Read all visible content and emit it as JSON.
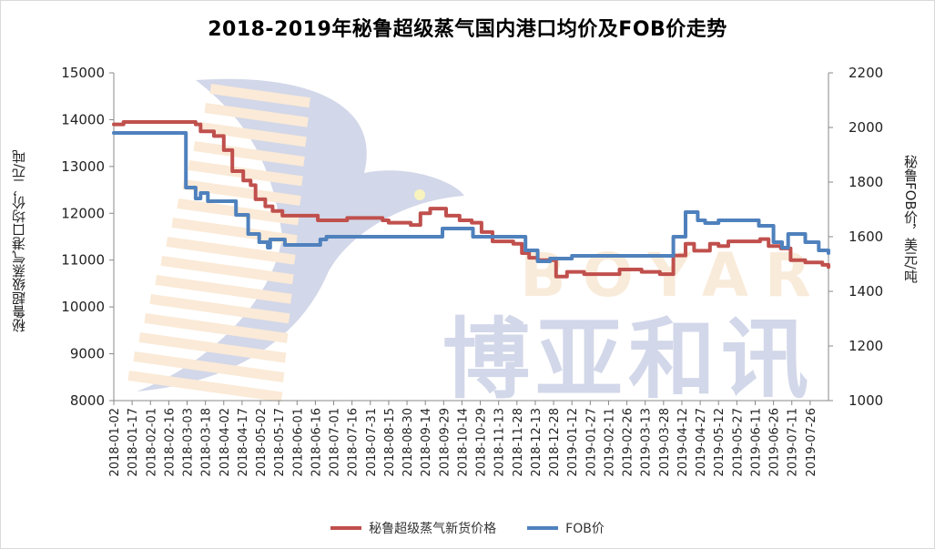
{
  "chart_data": {
    "type": "line",
    "title": "2018-2019年秘鲁超级蒸气国内港口均价及FOB价走势",
    "ylabel_left": "秘鲁超级蒸气港口均价，元/吨",
    "ylabel_right": "秘鲁FOB价，美元/吨",
    "ylim_left": [
      8000,
      15000
    ],
    "ylim_right": [
      1000,
      2200
    ],
    "yticks_left": [
      8000,
      9000,
      10000,
      11000,
      12000,
      13000,
      14000,
      15000
    ],
    "yticks_right": [
      1000,
      1200,
      1400,
      1600,
      1800,
      2000,
      2200
    ],
    "x_ticks": [
      "2018-01-02",
      "2018-01-17",
      "2018-02-01",
      "2018-02-16",
      "2018-03-03",
      "2018-03-18",
      "2018-04-02",
      "2018-04-17",
      "2018-05-02",
      "2018-05-17",
      "2018-06-01",
      "2018-06-16",
      "2018-07-01",
      "2018-07-16",
      "2018-07-31",
      "2018-08-15",
      "2018-08-30",
      "2018-09-14",
      "2018-09-29",
      "2018-10-14",
      "2018-10-29",
      "2018-11-13",
      "2018-11-28",
      "2018-12-13",
      "2018-12-28",
      "2019-01-12",
      "2019-01-27",
      "2019-02-11",
      "2019-02-26",
      "2019-03-13",
      "2019-03-28",
      "2019-04-12",
      "2019-04-27",
      "2019-05-12",
      "2019-05-27",
      "2019-06-11",
      "2019-06-26",
      "2019-07-11",
      "2019-07-26"
    ],
    "x_start": "2018-01-02",
    "x_end": "2019-08-10",
    "series": [
      {
        "name": "秘鲁超级蒸气新货价格",
        "axis": "left",
        "color": "#c0504d",
        "points": [
          [
            "2018-01-02",
            13900
          ],
          [
            "2018-01-10",
            13950
          ],
          [
            "2018-02-20",
            13950
          ],
          [
            "2018-03-10",
            13900
          ],
          [
            "2018-03-14",
            13750
          ],
          [
            "2018-03-25",
            13650
          ],
          [
            "2018-04-02",
            13350
          ],
          [
            "2018-04-09",
            12900
          ],
          [
            "2018-04-18",
            12700
          ],
          [
            "2018-04-24",
            12600
          ],
          [
            "2018-04-28",
            12300
          ],
          [
            "2018-05-06",
            12150
          ],
          [
            "2018-05-12",
            12050
          ],
          [
            "2018-05-20",
            11950
          ],
          [
            "2018-06-15",
            11950
          ],
          [
            "2018-06-18",
            11850
          ],
          [
            "2018-07-10",
            11850
          ],
          [
            "2018-07-12",
            11900
          ],
          [
            "2018-08-10",
            11850
          ],
          [
            "2018-08-15",
            11800
          ],
          [
            "2018-09-02",
            11750
          ],
          [
            "2018-09-10",
            12000
          ],
          [
            "2018-09-18",
            12100
          ],
          [
            "2018-10-01",
            11950
          ],
          [
            "2018-10-12",
            11850
          ],
          [
            "2018-10-22",
            11800
          ],
          [
            "2018-10-30",
            11600
          ],
          [
            "2018-11-08",
            11400
          ],
          [
            "2018-11-25",
            11350
          ],
          [
            "2018-12-02",
            11150
          ],
          [
            "2018-12-08",
            11050
          ],
          [
            "2018-12-15",
            11000
          ],
          [
            "2018-12-26",
            11000
          ],
          [
            "2018-12-30",
            10650
          ],
          [
            "2019-01-08",
            10750
          ],
          [
            "2019-01-22",
            10700
          ],
          [
            "2019-02-15",
            10700
          ],
          [
            "2019-02-20",
            10800
          ],
          [
            "2019-03-10",
            10750
          ],
          [
            "2019-03-25",
            10700
          ],
          [
            "2019-04-05",
            11100
          ],
          [
            "2019-04-15",
            11350
          ],
          [
            "2019-04-22",
            11200
          ],
          [
            "2019-05-05",
            11350
          ],
          [
            "2019-05-12",
            11300
          ],
          [
            "2019-05-20",
            11400
          ],
          [
            "2019-06-15",
            11450
          ],
          [
            "2019-06-22",
            11300
          ],
          [
            "2019-07-02",
            11250
          ],
          [
            "2019-07-10",
            11000
          ],
          [
            "2019-07-22",
            10950
          ],
          [
            "2019-08-05",
            10900
          ],
          [
            "2019-08-10",
            10850
          ]
        ]
      },
      {
        "name": "FOB价",
        "axis": "right",
        "color": "#4f81bd",
        "points": [
          [
            "2018-01-02",
            1980
          ],
          [
            "2018-02-28",
            1980
          ],
          [
            "2018-03-02",
            1780
          ],
          [
            "2018-03-10",
            1740
          ],
          [
            "2018-03-14",
            1760
          ],
          [
            "2018-03-20",
            1730
          ],
          [
            "2018-04-08",
            1730
          ],
          [
            "2018-04-12",
            1680
          ],
          [
            "2018-04-22",
            1610
          ],
          [
            "2018-05-01",
            1580
          ],
          [
            "2018-05-08",
            1560
          ],
          [
            "2018-05-10",
            1590
          ],
          [
            "2018-05-18",
            1590
          ],
          [
            "2018-05-22",
            1570
          ],
          [
            "2018-06-14",
            1570
          ],
          [
            "2018-06-20",
            1590
          ],
          [
            "2018-06-25",
            1600
          ],
          [
            "2018-09-25",
            1600
          ],
          [
            "2018-09-28",
            1630
          ],
          [
            "2018-10-20",
            1630
          ],
          [
            "2018-10-23",
            1600
          ],
          [
            "2018-11-25",
            1600
          ],
          [
            "2018-12-05",
            1550
          ],
          [
            "2018-12-15",
            1510
          ],
          [
            "2018-12-25",
            1520
          ],
          [
            "2019-01-12",
            1530
          ],
          [
            "2019-03-20",
            1530
          ],
          [
            "2019-03-28",
            1530
          ],
          [
            "2019-04-05",
            1600
          ],
          [
            "2019-04-15",
            1690
          ],
          [
            "2019-04-22",
            1690
          ],
          [
            "2019-04-25",
            1660
          ],
          [
            "2019-05-01",
            1650
          ],
          [
            "2019-05-12",
            1660
          ],
          [
            "2019-06-10",
            1660
          ],
          [
            "2019-06-14",
            1640
          ],
          [
            "2019-06-26",
            1580
          ],
          [
            "2019-07-03",
            1560
          ],
          [
            "2019-07-08",
            1610
          ],
          [
            "2019-07-18",
            1610
          ],
          [
            "2019-07-22",
            1580
          ],
          [
            "2019-08-02",
            1550
          ],
          [
            "2019-08-10",
            1540
          ]
        ]
      }
    ],
    "watermark": {
      "text_top": "BOYAR",
      "text_bottom": "博亚和讯"
    },
    "legend_position": "bottom",
    "grid": false
  }
}
